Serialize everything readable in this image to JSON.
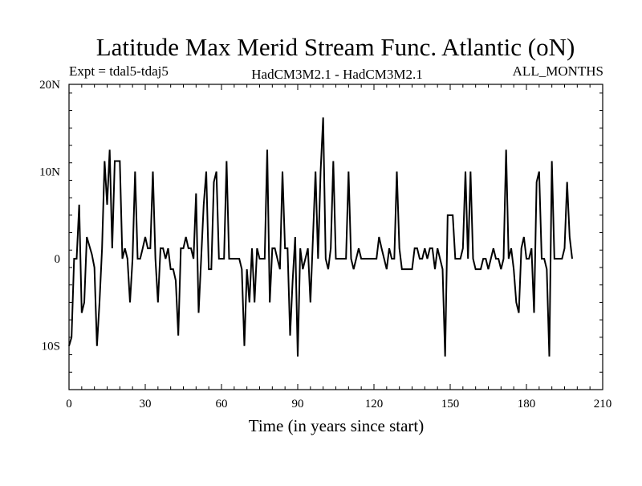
{
  "chart_data": {
    "type": "line",
    "title": "Latitude Max Merid Stream Func. Atlantic (oN)",
    "subtitle_left": "Expt = tdal5-tdaj5",
    "subtitle_center": "HadCM3M2.1 - HadCM3M2.1",
    "subtitle_right": "ALL_MONTHS",
    "xlabel": "Time (in years since start)",
    "ylabel": "",
    "xlim": [
      0,
      210
    ],
    "ylim": [
      -15,
      20
    ],
    "x_ticks": [
      0,
      30,
      60,
      90,
      120,
      150,
      180,
      210
    ],
    "x_tick_labels": [
      "0",
      "30",
      "60",
      "90",
      "120",
      "150",
      "180",
      "210"
    ],
    "y_ticks": [
      -10,
      0,
      10,
      20
    ],
    "y_tick_labels": [
      "10S",
      "0",
      "10N",
      "20N"
    ],
    "grid": false,
    "line_color": "#000000",
    "series": [
      {
        "values": [
          [
            0,
            -10
          ],
          [
            1,
            -9
          ],
          [
            2,
            0
          ],
          [
            3,
            0
          ],
          [
            4,
            6.2
          ],
          [
            5,
            -6.2
          ],
          [
            6,
            -5
          ],
          [
            7,
            2.5
          ],
          [
            8,
            1.5
          ],
          [
            9,
            0.5
          ],
          [
            10,
            -1
          ],
          [
            11,
            -10
          ],
          [
            12,
            -5
          ],
          [
            13,
            1.2
          ],
          [
            14,
            11.2
          ],
          [
            15,
            6.2
          ],
          [
            16,
            12.5
          ],
          [
            17,
            1.2
          ],
          [
            18,
            11.2
          ],
          [
            19,
            11.2
          ],
          [
            20,
            11.2
          ],
          [
            21,
            0
          ],
          [
            22,
            1.2
          ],
          [
            23,
            0
          ],
          [
            24,
            -5
          ],
          [
            25,
            0
          ],
          [
            26,
            10
          ],
          [
            27,
            0
          ],
          [
            28,
            0
          ],
          [
            29,
            1.2
          ],
          [
            30,
            2.5
          ],
          [
            31,
            1.2
          ],
          [
            32,
            1.2
          ],
          [
            33,
            10
          ],
          [
            34,
            0
          ],
          [
            35,
            -5
          ],
          [
            36,
            1.2
          ],
          [
            37,
            1.2
          ],
          [
            38,
            0
          ],
          [
            39,
            1.2
          ],
          [
            40,
            -1.2
          ],
          [
            41,
            -1.2
          ],
          [
            42,
            -2.5
          ],
          [
            43,
            -8.8
          ],
          [
            44,
            1.2
          ],
          [
            45,
            1.2
          ],
          [
            46,
            2.5
          ],
          [
            47,
            1.2
          ],
          [
            48,
            1.2
          ],
          [
            49,
            0
          ],
          [
            50,
            7.5
          ],
          [
            51,
            -6.2
          ],
          [
            52,
            0
          ],
          [
            53,
            6.2
          ],
          [
            54,
            10
          ],
          [
            55,
            -1.2
          ],
          [
            56,
            -1.2
          ],
          [
            57,
            8.8
          ],
          [
            58,
            10
          ],
          [
            59,
            0
          ],
          [
            60,
            0
          ],
          [
            61,
            0
          ],
          [
            62,
            11.2
          ],
          [
            63,
            0
          ],
          [
            64,
            0
          ],
          [
            65,
            0
          ],
          [
            66,
            0
          ],
          [
            67,
            0
          ],
          [
            68,
            -1.2
          ],
          [
            69,
            -10
          ],
          [
            70,
            -1.2
          ],
          [
            71,
            -5
          ],
          [
            72,
            1.2
          ],
          [
            73,
            -5
          ],
          [
            74,
            1.2
          ],
          [
            75,
            0
          ],
          [
            76,
            0
          ],
          [
            77,
            0
          ],
          [
            78,
            12.5
          ],
          [
            79,
            -5
          ],
          [
            80,
            1.2
          ],
          [
            81,
            1.2
          ],
          [
            82,
            0
          ],
          [
            83,
            -1.2
          ],
          [
            84,
            10
          ],
          [
            85,
            1.2
          ],
          [
            86,
            1.2
          ],
          [
            87,
            -8.8
          ],
          [
            88,
            -2.5
          ],
          [
            89,
            2.5
          ],
          [
            90,
            -11.2
          ],
          [
            91,
            1.2
          ],
          [
            92,
            -1.2
          ],
          [
            93,
            0
          ],
          [
            94,
            1.2
          ],
          [
            95,
            -5
          ],
          [
            96,
            2.5
          ],
          [
            97,
            10
          ],
          [
            98,
            0
          ],
          [
            99,
            10
          ],
          [
            100,
            16.2
          ],
          [
            101,
            0
          ],
          [
            102,
            -1.2
          ],
          [
            103,
            1.2
          ],
          [
            104,
            11.2
          ],
          [
            105,
            0
          ],
          [
            106,
            0
          ],
          [
            107,
            0
          ],
          [
            108,
            0
          ],
          [
            109,
            0
          ],
          [
            110,
            10
          ],
          [
            111,
            0
          ],
          [
            112,
            -1.2
          ],
          [
            113,
            0
          ],
          [
            114,
            1.2
          ],
          [
            115,
            0
          ],
          [
            116,
            0
          ],
          [
            117,
            0
          ],
          [
            118,
            0
          ],
          [
            119,
            0
          ],
          [
            120,
            0
          ],
          [
            121,
            0
          ],
          [
            122,
            2.5
          ],
          [
            123,
            1.2
          ],
          [
            124,
            0
          ],
          [
            125,
            -1.2
          ],
          [
            126,
            1.2
          ],
          [
            127,
            0
          ],
          [
            128,
            0
          ],
          [
            129,
            10
          ],
          [
            130,
            1.2
          ],
          [
            131,
            -1.2
          ],
          [
            132,
            -1.2
          ],
          [
            133,
            -1.2
          ],
          [
            134,
            -1.2
          ],
          [
            135,
            -1.2
          ],
          [
            136,
            1.2
          ],
          [
            137,
            1.2
          ],
          [
            138,
            0
          ],
          [
            139,
            0
          ],
          [
            140,
            1.2
          ],
          [
            141,
            0
          ],
          [
            142,
            1.2
          ],
          [
            143,
            1.2
          ],
          [
            144,
            -1.2
          ],
          [
            145,
            1.2
          ],
          [
            146,
            0
          ],
          [
            147,
            -1.2
          ],
          [
            148,
            -11.2
          ],
          [
            149,
            5
          ],
          [
            150,
            5
          ],
          [
            151,
            5
          ],
          [
            152,
            0
          ],
          [
            153,
            0
          ],
          [
            154,
            0
          ],
          [
            155,
            1.2
          ],
          [
            156,
            10
          ],
          [
            157,
            0
          ],
          [
            158,
            10
          ],
          [
            159,
            0
          ],
          [
            160,
            -1.2
          ],
          [
            161,
            -1.2
          ],
          [
            162,
            -1.2
          ],
          [
            163,
            0
          ],
          [
            164,
            0
          ],
          [
            165,
            -1.2
          ],
          [
            166,
            0
          ],
          [
            167,
            1.2
          ],
          [
            168,
            0
          ],
          [
            169,
            0
          ],
          [
            170,
            -1.2
          ],
          [
            171,
            0
          ],
          [
            172,
            12.5
          ],
          [
            173,
            0
          ],
          [
            174,
            1.2
          ],
          [
            175,
            -1.2
          ],
          [
            176,
            -5
          ],
          [
            177,
            -6.2
          ],
          [
            178,
            1.2
          ],
          [
            179,
            2.5
          ],
          [
            180,
            0
          ],
          [
            181,
            0
          ],
          [
            182,
            1.2
          ],
          [
            183,
            -6.2
          ],
          [
            184,
            8.8
          ],
          [
            185,
            10
          ],
          [
            186,
            0
          ],
          [
            187,
            0
          ],
          [
            188,
            -1.2
          ],
          [
            189,
            -11.2
          ],
          [
            190,
            11.2
          ],
          [
            191,
            0
          ],
          [
            192,
            0
          ],
          [
            193,
            0
          ],
          [
            194,
            0
          ],
          [
            195,
            1.2
          ],
          [
            196,
            8.8
          ],
          [
            197,
            2.5
          ],
          [
            198,
            0
          ]
        ]
      }
    ]
  }
}
